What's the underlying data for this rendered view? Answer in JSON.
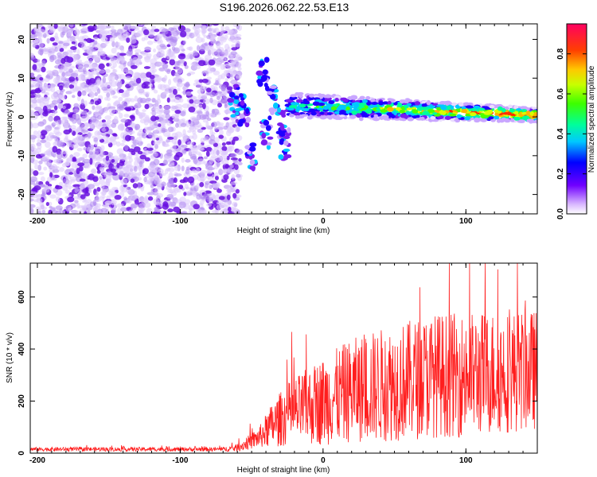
{
  "title": "S196.2026.062.22.53.E13",
  "colors": {
    "trace": "#ff1e1e",
    "spectrogram_low": "#d7c2f5",
    "spectrogram_mid": "#6a18d8",
    "axis": "#000000"
  },
  "chart_data": [
    {
      "type": "heatmap",
      "name": "spectrogram",
      "xlabel": "Height of straight line (km)",
      "ylabel": "Frequency (Hz)",
      "xlim": [
        -205,
        150
      ],
      "ylim": [
        -25,
        24
      ],
      "xticks": [
        -200,
        -100,
        0,
        100
      ],
      "xtick_labels": [
        "-200",
        "-100",
        "0",
        "100"
      ],
      "yticks": [
        20,
        10,
        0,
        -10,
        -20
      ],
      "ytick_labels": [
        "20",
        "10",
        "0",
        "-10",
        "-20"
      ],
      "noise_region_x": [
        -205,
        -62
      ],
      "signal_band_x": [
        -25,
        150
      ],
      "signal_band_center_hz": [
        3,
        2,
        1,
        0.5
      ],
      "transition_features": [
        {
          "x": -62,
          "y": 4
        },
        {
          "x": -55,
          "y": 2
        },
        {
          "x": -50,
          "y": -10
        },
        {
          "x": -42,
          "y": 11
        },
        {
          "x": -40,
          "y": -4
        },
        {
          "x": -35,
          "y": 5
        },
        {
          "x": -30,
          "y": -2
        },
        {
          "x": -27,
          "y": -7
        }
      ],
      "colorbar": {
        "label": "Normalized spectral amplitude",
        "range": [
          0,
          0.95
        ],
        "ticks": [
          0,
          0.2,
          0.4,
          0.6,
          0.8
        ],
        "tick_labels": [
          "0.0",
          "0.2",
          "0.4",
          "0.6",
          "0.8"
        ]
      }
    },
    {
      "type": "line",
      "name": "snr",
      "xlabel": "Height of straight line (km)",
      "ylabel": "SNR (10 * v/v)",
      "xlim": [
        -205,
        150
      ],
      "ylim": [
        0,
        730
      ],
      "xticks": [
        -200,
        -100,
        0,
        100
      ],
      "xtick_labels": [
        "-200",
        "-100",
        "0",
        "100"
      ],
      "yticks": [
        0,
        200,
        400,
        600
      ],
      "ytick_labels": [
        "0",
        "200",
        "400",
        "600"
      ],
      "envelope": {
        "x": [
          -205,
          -70,
          -60,
          -45,
          -35,
          -25,
          -15,
          0,
          20,
          40,
          60,
          80,
          100,
          120,
          150
        ],
        "mean": [
          15,
          15,
          20,
          60,
          110,
          150,
          170,
          200,
          240,
          260,
          280,
          300,
          300,
          310,
          320
        ],
        "spread": [
          8,
          8,
          15,
          40,
          90,
          120,
          140,
          170,
          200,
          220,
          230,
          240,
          240,
          240,
          230
        ]
      },
      "peak_snr": 730
    }
  ]
}
